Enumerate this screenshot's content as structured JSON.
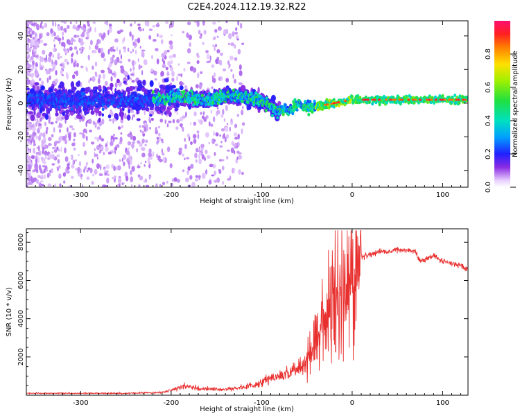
{
  "title": "C2E4.2024.112.19.32.R22",
  "chart_data": [
    {
      "type": "heatmap",
      "xlabel": "Height of straight line (km)",
      "ylabel": "Frequency (Hz)",
      "xlim": [
        -360,
        128
      ],
      "ylim": [
        -50,
        49
      ],
      "x_ticks": [
        -300,
        -200,
        -100,
        0,
        100
      ],
      "y_ticks": [
        -40,
        -20,
        0,
        20,
        40
      ],
      "x_tick_labels": [
        "-300",
        "-200",
        "-100",
        "0",
        "100"
      ],
      "y_tick_labels": [
        "-40",
        "-20",
        "0",
        "20",
        "40"
      ],
      "grid": false,
      "ridge": {
        "x": [
          -360,
          -300,
          -250,
          -220,
          -200,
          -180,
          -160,
          -140,
          -120,
          -100,
          -90,
          -80,
          -70,
          -60,
          -50,
          -40,
          -30,
          -20,
          -10,
          0,
          20,
          40,
          60,
          80,
          100,
          128
        ],
        "y": [
          2,
          2,
          2,
          2,
          3,
          3,
          2,
          4,
          4,
          1,
          -2,
          -5,
          -4,
          -1,
          -3,
          -2,
          -1,
          0,
          1,
          2,
          2,
          2,
          2,
          2,
          2,
          2
        ]
      },
      "colorbar": {
        "label": "Normalized spectral amplitude",
        "range": [
          0,
          1
        ],
        "ticks": [
          0.0,
          0.2,
          0.4,
          0.6,
          0.8
        ],
        "tick_labels": [
          "0.0",
          "0.2",
          "0.4",
          "0.6",
          "0.8"
        ]
      }
    },
    {
      "type": "line",
      "xlabel": "Height of straight line (km)",
      "ylabel": "SNR (10 * v/v)",
      "xlim": [
        -360,
        128
      ],
      "ylim": [
        0,
        8700
      ],
      "x_ticks": [
        -300,
        -200,
        -100,
        0,
        100
      ],
      "y_ticks": [
        2000,
        4000,
        6000,
        8000
      ],
      "x_tick_labels": [
        "-300",
        "-200",
        "-100",
        "0",
        "100"
      ],
      "y_tick_labels": [
        "2000",
        "4000",
        "6000",
        "8000"
      ],
      "grid": false,
      "series": [
        {
          "color": "#e8302f",
          "x": [
            -360,
            -300,
            -250,
            -210,
            -200,
            -190,
            -185,
            -170,
            -150,
            -130,
            -110,
            -100,
            -90,
            -80,
            -70,
            -60,
            -50,
            -45,
            -40,
            -35,
            -30,
            -25,
            -20,
            -15,
            -12,
            -10,
            -5,
            0,
            5,
            10,
            20,
            30,
            40,
            50,
            60,
            70,
            75,
            80,
            90,
            100,
            110,
            120,
            128
          ],
          "y": [
            100,
            100,
            100,
            150,
            250,
            400,
            500,
            350,
            300,
            350,
            500,
            700,
            900,
            1000,
            1200,
            1400,
            1800,
            2200,
            2800,
            3600,
            4200,
            4800,
            5200,
            5600,
            6200,
            6000,
            5800,
            6000,
            6800,
            7200,
            7400,
            7500,
            7500,
            7600,
            7600,
            7500,
            7000,
            7100,
            7300,
            7000,
            6900,
            6800,
            6600
          ]
        }
      ]
    }
  ]
}
